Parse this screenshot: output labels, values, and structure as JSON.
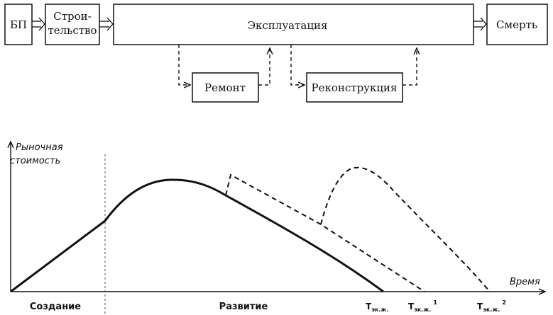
{
  "flow": {
    "bp": "БП",
    "construction_line1": "Строи-",
    "construction_line2": "тельство",
    "operation": "Эксплуатация",
    "death": "Смерть",
    "repair": "Ремонт",
    "reconstruction": "Реконструкция"
  },
  "chart": {
    "y_label_line1": "Рыночная",
    "y_label_line2": "стоимость",
    "x_label": "Время",
    "phase_creation": "Создание",
    "phase_development": "Развитие",
    "t_base": "T",
    "t_sub": "эк.ж.",
    "t1_sup": "1",
    "t2_sup": "2"
  }
}
